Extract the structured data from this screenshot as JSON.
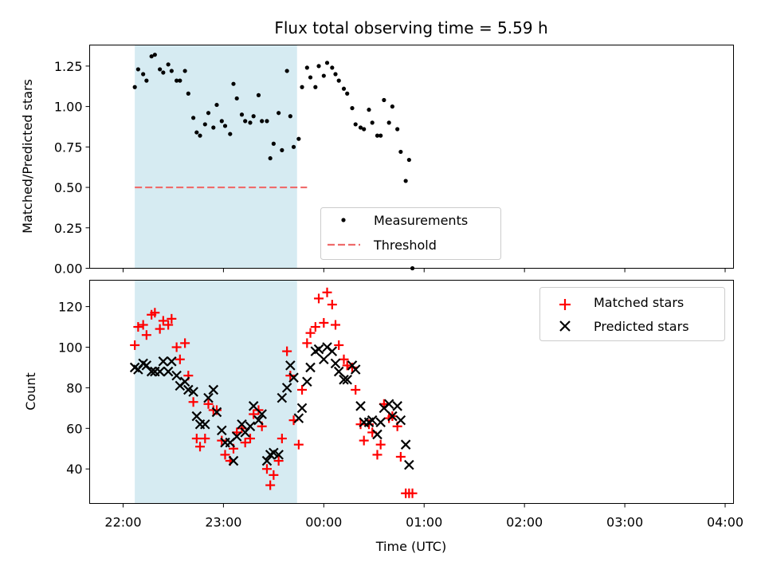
{
  "chart_data": [
    {
      "type": "scatter",
      "title": "Flux total observing time = 5.59 h",
      "ylabel": "Matched/Predicted stars",
      "xlabel": "",
      "ylim": [
        0,
        1.38
      ],
      "yticks": [
        0,
        0.25,
        0.5,
        0.75,
        1.0,
        1.25
      ],
      "ytick_labels": [
        "0.00",
        "0.25",
        "0.50",
        "0.75",
        "1.00",
        "1.25"
      ],
      "grid": false,
      "legend_position": "lower-center",
      "observing_window": [
        "22:07",
        "23:44"
      ],
      "threshold": {
        "name": "Threshold",
        "value": 0.5,
        "x_start": "22:07",
        "x_end": "23:50",
        "color": "#ef6b6b"
      },
      "series": [
        {
          "name": "Measurements",
          "color": "#000000",
          "points": [
            [
              "22:07",
              1.12
            ],
            [
              "22:09",
              1.23
            ],
            [
              "22:12",
              1.2
            ],
            [
              "22:14",
              1.16
            ],
            [
              "22:17",
              1.31
            ],
            [
              "22:19",
              1.32
            ],
            [
              "22:22",
              1.23
            ],
            [
              "22:24",
              1.21
            ],
            [
              "22:27",
              1.26
            ],
            [
              "22:29",
              1.22
            ],
            [
              "22:32",
              1.16
            ],
            [
              "22:34",
              1.16
            ],
            [
              "22:37",
              1.22
            ],
            [
              "22:39",
              1.08
            ],
            [
              "22:42",
              0.93
            ],
            [
              "22:44",
              0.84
            ],
            [
              "22:46",
              0.82
            ],
            [
              "22:49",
              0.89
            ],
            [
              "22:51",
              0.96
            ],
            [
              "22:54",
              0.87
            ],
            [
              "22:56",
              1.01
            ],
            [
              "22:59",
              0.91
            ],
            [
              "23:01",
              0.88
            ],
            [
              "23:04",
              0.83
            ],
            [
              "23:06",
              1.14
            ],
            [
              "23:08",
              1.05
            ],
            [
              "23:11",
              0.95
            ],
            [
              "23:13",
              0.91
            ],
            [
              "23:16",
              0.9
            ],
            [
              "23:18",
              0.94
            ],
            [
              "23:21",
              1.07
            ],
            [
              "23:23",
              0.91
            ],
            [
              "23:26",
              0.91
            ],
            [
              "23:28",
              0.68
            ],
            [
              "23:30",
              0.77
            ],
            [
              "23:33",
              0.96
            ],
            [
              "23:35",
              0.73
            ],
            [
              "23:38",
              1.22
            ],
            [
              "23:40",
              0.94
            ],
            [
              "23:42",
              0.75
            ],
            [
              "23:45",
              0.8
            ],
            [
              "23:47",
              1.12
            ],
            [
              "23:50",
              1.24
            ],
            [
              "23:52",
              1.18
            ],
            [
              "23:55",
              1.12
            ],
            [
              "23:57",
              1.25
            ],
            [
              "00:00",
              1.19
            ],
            [
              "00:02",
              1.27
            ],
            [
              "00:05",
              1.24
            ],
            [
              "00:07",
              1.2
            ],
            [
              "00:09",
              1.16
            ],
            [
              "00:12",
              1.11
            ],
            [
              "00:14",
              1.08
            ],
            [
              "00:17",
              0.99
            ],
            [
              "00:19",
              0.89
            ],
            [
              "00:22",
              0.87
            ],
            [
              "00:24",
              0.86
            ],
            [
              "00:27",
              0.98
            ],
            [
              "00:29",
              0.9
            ],
            [
              "00:32",
              0.82
            ],
            [
              "00:34",
              0.82
            ],
            [
              "00:36",
              1.04
            ],
            [
              "00:39",
              0.9
            ],
            [
              "00:41",
              1.0
            ],
            [
              "00:44",
              0.86
            ],
            [
              "00:46",
              0.72
            ],
            [
              "00:49",
              0.54
            ],
            [
              "00:51",
              0.67
            ],
            [
              "00:53",
              0.0
            ]
          ]
        }
      ]
    },
    {
      "type": "scatter",
      "title": "",
      "xlabel": "Time (UTC)",
      "ylabel": "Count",
      "ylim": [
        23,
        133
      ],
      "yticks": [
        40,
        60,
        80,
        100,
        120
      ],
      "xticks": [
        "22:00",
        "23:00",
        "00:00",
        "01:00",
        "02:00",
        "03:00",
        "04:00"
      ],
      "grid": false,
      "legend_position": "upper-right",
      "series": [
        {
          "name": "Matched stars",
          "marker": "+",
          "color": "#ff0000",
          "points": [
            [
              "22:07",
              101
            ],
            [
              "22:09",
              110
            ],
            [
              "22:12",
              111
            ],
            [
              "22:14",
              106
            ],
            [
              "22:17",
              116
            ],
            [
              "22:19",
              117
            ],
            [
              "22:22",
              109
            ],
            [
              "22:24",
              113
            ],
            [
              "22:27",
              111
            ],
            [
              "22:29",
              114
            ],
            [
              "22:32",
              100
            ],
            [
              "22:34",
              94
            ],
            [
              "22:37",
              102
            ],
            [
              "22:39",
              86
            ],
            [
              "22:42",
              73
            ],
            [
              "22:44",
              55
            ],
            [
              "22:46",
              51
            ],
            [
              "22:49",
              55
            ],
            [
              "22:51",
              72
            ],
            [
              "22:54",
              69
            ],
            [
              "22:56",
              69
            ],
            [
              "22:59",
              54
            ],
            [
              "23:01",
              47
            ],
            [
              "23:04",
              44
            ],
            [
              "23:06",
              50
            ],
            [
              "23:08",
              58
            ],
            [
              "23:11",
              60
            ],
            [
              "23:13",
              53
            ],
            [
              "23:16",
              55
            ],
            [
              "23:18",
              67
            ],
            [
              "23:21",
              69
            ],
            [
              "23:23",
              61
            ],
            [
              "23:26",
              40
            ],
            [
              "23:28",
              32
            ],
            [
              "23:30",
              37
            ],
            [
              "23:33",
              44
            ],
            [
              "23:35",
              55
            ],
            [
              "23:38",
              98
            ],
            [
              "23:40",
              86
            ],
            [
              "23:42",
              64
            ],
            [
              "23:45",
              52
            ],
            [
              "23:47",
              79
            ],
            [
              "23:50",
              102
            ],
            [
              "23:52",
              107
            ],
            [
              "23:55",
              110
            ],
            [
              "23:57",
              124
            ],
            [
              "00:00",
              112
            ],
            [
              "00:02",
              127
            ],
            [
              "00:05",
              121
            ],
            [
              "00:07",
              111
            ],
            [
              "00:09",
              101
            ],
            [
              "00:12",
              94
            ],
            [
              "00:14",
              91
            ],
            [
              "00:17",
              90
            ],
            [
              "00:19",
              79
            ],
            [
              "00:22",
              62
            ],
            [
              "00:24",
              54
            ],
            [
              "00:27",
              62
            ],
            [
              "00:29",
              58
            ],
            [
              "00:32",
              47
            ],
            [
              "00:34",
              52
            ],
            [
              "00:36",
              72
            ],
            [
              "00:39",
              65
            ],
            [
              "00:41",
              66
            ],
            [
              "00:44",
              61
            ],
            [
              "00:46",
              46
            ],
            [
              "00:49",
              28
            ],
            [
              "00:51",
              28
            ],
            [
              "00:53",
              28
            ]
          ]
        },
        {
          "name": "Predicted stars",
          "marker": "x",
          "color": "#000000",
          "points": [
            [
              "22:07",
              90
            ],
            [
              "22:09",
              89
            ],
            [
              "22:12",
              92
            ],
            [
              "22:14",
              91
            ],
            [
              "22:17",
              88
            ],
            [
              "22:19",
              88
            ],
            [
              "22:22",
              88
            ],
            [
              "22:24",
              93
            ],
            [
              "22:27",
              88
            ],
            [
              "22:29",
              93
            ],
            [
              "22:32",
              86
            ],
            [
              "22:34",
              81
            ],
            [
              "22:37",
              83
            ],
            [
              "22:39",
              79
            ],
            [
              "22:42",
              78
            ],
            [
              "22:44",
              66
            ],
            [
              "22:46",
              62
            ],
            [
              "22:49",
              62
            ],
            [
              "22:51",
              75
            ],
            [
              "22:54",
              79
            ],
            [
              "22:56",
              68
            ],
            [
              "22:59",
              59
            ],
            [
              "23:01",
              53
            ],
            [
              "23:04",
              53
            ],
            [
              "23:06",
              44
            ],
            [
              "23:08",
              56
            ],
            [
              "23:11",
              62
            ],
            [
              "23:13",
              58
            ],
            [
              "23:16",
              61
            ],
            [
              "23:18",
              71
            ],
            [
              "23:21",
              64
            ],
            [
              "23:23",
              67
            ],
            [
              "23:26",
              44
            ],
            [
              "23:28",
              47
            ],
            [
              "23:30",
              48
            ],
            [
              "23:33",
              47
            ],
            [
              "23:35",
              75
            ],
            [
              "23:38",
              80
            ],
            [
              "23:40",
              91
            ],
            [
              "23:42",
              85
            ],
            [
              "23:45",
              65
            ],
            [
              "23:47",
              70
            ],
            [
              "23:50",
              83
            ],
            [
              "23:52",
              90
            ],
            [
              "23:55",
              98
            ],
            [
              "23:57",
              99
            ],
            [
              "00:00",
              94
            ],
            [
              "00:02",
              100
            ],
            [
              "00:05",
              98
            ],
            [
              "00:07",
              92
            ],
            [
              "00:09",
              88
            ],
            [
              "00:12",
              84
            ],
            [
              "00:14",
              84
            ],
            [
              "00:17",
              91
            ],
            [
              "00:19",
              89
            ],
            [
              "00:22",
              71
            ],
            [
              "00:24",
              63
            ],
            [
              "00:27",
              63
            ],
            [
              "00:29",
              64
            ],
            [
              "00:32",
              57
            ],
            [
              "00:34",
              63
            ],
            [
              "00:36",
              70
            ],
            [
              "00:39",
              72
            ],
            [
              "00:41",
              66
            ],
            [
              "00:44",
              71
            ],
            [
              "00:46",
              64
            ],
            [
              "00:49",
              52
            ],
            [
              "00:51",
              42
            ]
          ]
        }
      ]
    }
  ]
}
